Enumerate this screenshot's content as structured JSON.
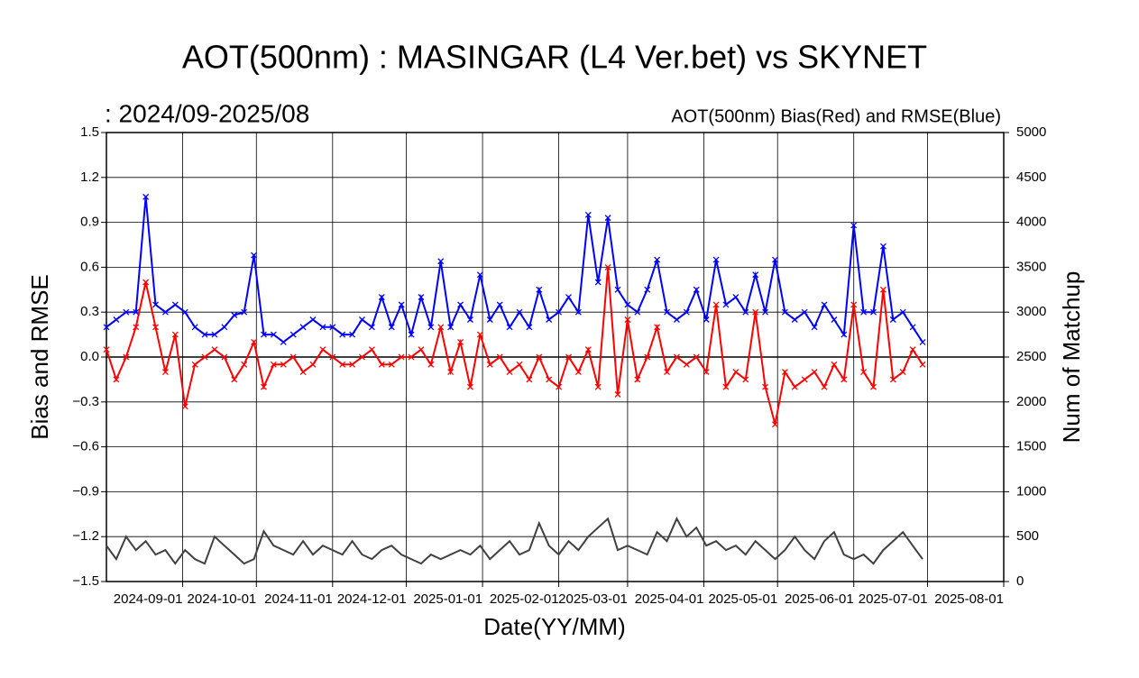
{
  "chart_data": {
    "type": "line",
    "title": "AOT(500nm) : MASINGAR (L4 Ver.bet) vs SKYNET",
    "subtitle": ":  2024/09-2025/08",
    "annotation": "AOT(500nm) Bias(Red) and RMSE(Blue)",
    "x_label": "Date(YY/MM)",
    "y_label": "Bias and RMSE",
    "y2_label": "Num of Matchup",
    "xlim": [
      "2024-08-01",
      "2025-08-01"
    ],
    "xticks": [
      "2024-09-01",
      "2024-10-01",
      "2024-11-01",
      "2024-12-01",
      "2025-01-01",
      "2025-02-01",
      "2025-03-01",
      "2025-04-01",
      "2025-05-01",
      "2025-06-01",
      "2025-07-01",
      "2025-08-01"
    ],
    "ylim": [
      -1.5,
      1.5
    ],
    "yticks": [
      {
        "value": -1.5,
        "label": "−1.5"
      },
      {
        "value": -1.2,
        "label": "−1.2"
      },
      {
        "value": -0.9,
        "label": "−0.9"
      },
      {
        "value": -0.6,
        "label": "−0.6"
      },
      {
        "value": -0.3,
        "label": "−0.3"
      },
      {
        "value": 0,
        "label": "0.0"
      },
      0.3,
      0.6,
      0.9,
      1.2,
      1.5
    ],
    "y2lim": [
      0,
      5000
    ],
    "y2ticks": [
      0,
      500,
      1000,
      1500,
      2000,
      2500,
      3000,
      3500,
      4000,
      4500,
      5000
    ],
    "grid": true,
    "x": [
      "2024-08-01",
      "2024-08-05",
      "2024-08-09",
      "2024-08-13",
      "2024-08-17",
      "2024-08-21",
      "2024-08-25",
      "2024-08-29",
      "2024-09-02",
      "2024-09-06",
      "2024-09-10",
      "2024-09-14",
      "2024-09-18",
      "2024-09-22",
      "2024-09-26",
      "2024-09-30",
      "2024-10-04",
      "2024-10-08",
      "2024-10-12",
      "2024-10-16",
      "2024-10-20",
      "2024-10-24",
      "2024-10-28",
      "2024-11-01",
      "2024-11-05",
      "2024-11-09",
      "2024-11-13",
      "2024-11-17",
      "2024-11-21",
      "2024-11-25",
      "2024-11-29",
      "2024-12-03",
      "2024-12-07",
      "2024-12-11",
      "2024-12-15",
      "2024-12-19",
      "2024-12-23",
      "2024-12-27",
      "2024-12-31",
      "2025-01-04",
      "2025-01-08",
      "2025-01-12",
      "2025-01-16",
      "2025-01-20",
      "2025-01-24",
      "2025-01-28",
      "2025-02-01",
      "2025-02-05",
      "2025-02-09",
      "2025-02-13",
      "2025-02-17",
      "2025-02-21",
      "2025-02-25",
      "2025-03-01",
      "2025-03-05",
      "2025-03-09",
      "2025-03-13",
      "2025-03-17",
      "2025-03-21",
      "2025-03-25",
      "2025-03-29",
      "2025-04-02",
      "2025-04-06",
      "2025-04-10",
      "2025-04-14",
      "2025-04-18",
      "2025-04-22",
      "2025-04-26",
      "2025-04-30",
      "2025-05-04",
      "2025-05-08",
      "2025-05-12",
      "2025-05-16",
      "2025-05-20",
      "2025-05-24",
      "2025-05-28",
      "2025-06-01",
      "2025-06-05",
      "2025-06-09",
      "2025-06-13",
      "2025-06-17",
      "2025-06-21",
      "2025-06-25",
      "2025-06-29"
    ],
    "series": [
      {
        "color": "#0000ff",
        "marker": "x",
        "values": [
          0.2,
          0.25,
          0.3,
          0.3,
          1.07,
          0.35,
          0.3,
          0.35,
          0.3,
          0.2,
          0.15,
          0.15,
          0.2,
          0.28,
          0.3,
          0.68,
          0.15,
          0.15,
          0.1,
          0.15,
          0.2,
          0.25,
          0.2,
          0.2,
          0.15,
          0.15,
          0.25,
          0.2,
          0.4,
          0.2,
          0.35,
          0.15,
          0.4,
          0.2,
          0.64,
          0.2,
          0.35,
          0.25,
          0.55,
          0.25,
          0.35,
          0.2,
          0.3,
          0.2,
          0.45,
          0.25,
          0.3,
          0.4,
          0.3,
          0.95,
          0.5,
          0.93,
          0.45,
          0.35,
          0.3,
          0.45,
          0.65,
          0.3,
          0.25,
          0.3,
          0.45,
          0.25,
          0.65,
          0.35,
          0.4,
          0.3,
          0.55,
          0.3,
          0.65,
          0.3,
          0.25,
          0.3,
          0.2,
          0.35,
          0.25,
          0.15,
          0.88,
          0.3,
          0.3,
          0.74,
          0.25,
          0.3,
          0.2,
          0.1
        ]
      },
      {
        "color": "#ff0000",
        "marker": "x",
        "values": [
          0.05,
          -0.15,
          0,
          0.2,
          0.5,
          0.2,
          -0.1,
          0.15,
          -0.33,
          -0.05,
          0,
          0.05,
          0,
          -0.15,
          -0.05,
          0.1,
          -0.2,
          -0.05,
          -0.05,
          0,
          -0.1,
          -0.05,
          0.05,
          0,
          -0.05,
          -0.05,
          0,
          0.05,
          -0.05,
          -0.05,
          0,
          0,
          0.05,
          -0.05,
          0.2,
          -0.1,
          0.1,
          -0.2,
          0.15,
          -0.05,
          0,
          -0.1,
          -0.05,
          -0.15,
          0,
          -0.15,
          -0.2,
          0,
          -0.1,
          0.05,
          -0.2,
          0.6,
          -0.25,
          0.25,
          -0.15,
          0,
          0.2,
          -0.1,
          0,
          -0.05,
          0,
          -0.1,
          0.35,
          -0.2,
          -0.1,
          -0.15,
          0.3,
          -0.2,
          -0.45,
          -0.1,
          -0.2,
          -0.15,
          -0.1,
          -0.2,
          -0.05,
          -0.15,
          0.35,
          -0.1,
          -0.2,
          0.45,
          -0.15,
          -0.1,
          0.05,
          -0.05
        ]
      },
      {
        "color": "#404040",
        "axis": "y2",
        "values": [
          400,
          250,
          500,
          350,
          450,
          300,
          350,
          200,
          350,
          250,
          200,
          500,
          400,
          300,
          200,
          250,
          560,
          400,
          350,
          300,
          450,
          300,
          400,
          350,
          300,
          450,
          300,
          250,
          350,
          400,
          300,
          250,
          200,
          300,
          250,
          300,
          350,
          300,
          400,
          250,
          350,
          450,
          300,
          350,
          650,
          400,
          300,
          450,
          350,
          500,
          600,
          700,
          350,
          400,
          350,
          300,
          550,
          450,
          700,
          500,
          600,
          400,
          450,
          350,
          400,
          300,
          450,
          350,
          250,
          350,
          500,
          350,
          250,
          450,
          550,
          300,
          250,
          300,
          200,
          350,
          450,
          550,
          400,
          250
        ]
      }
    ]
  }
}
